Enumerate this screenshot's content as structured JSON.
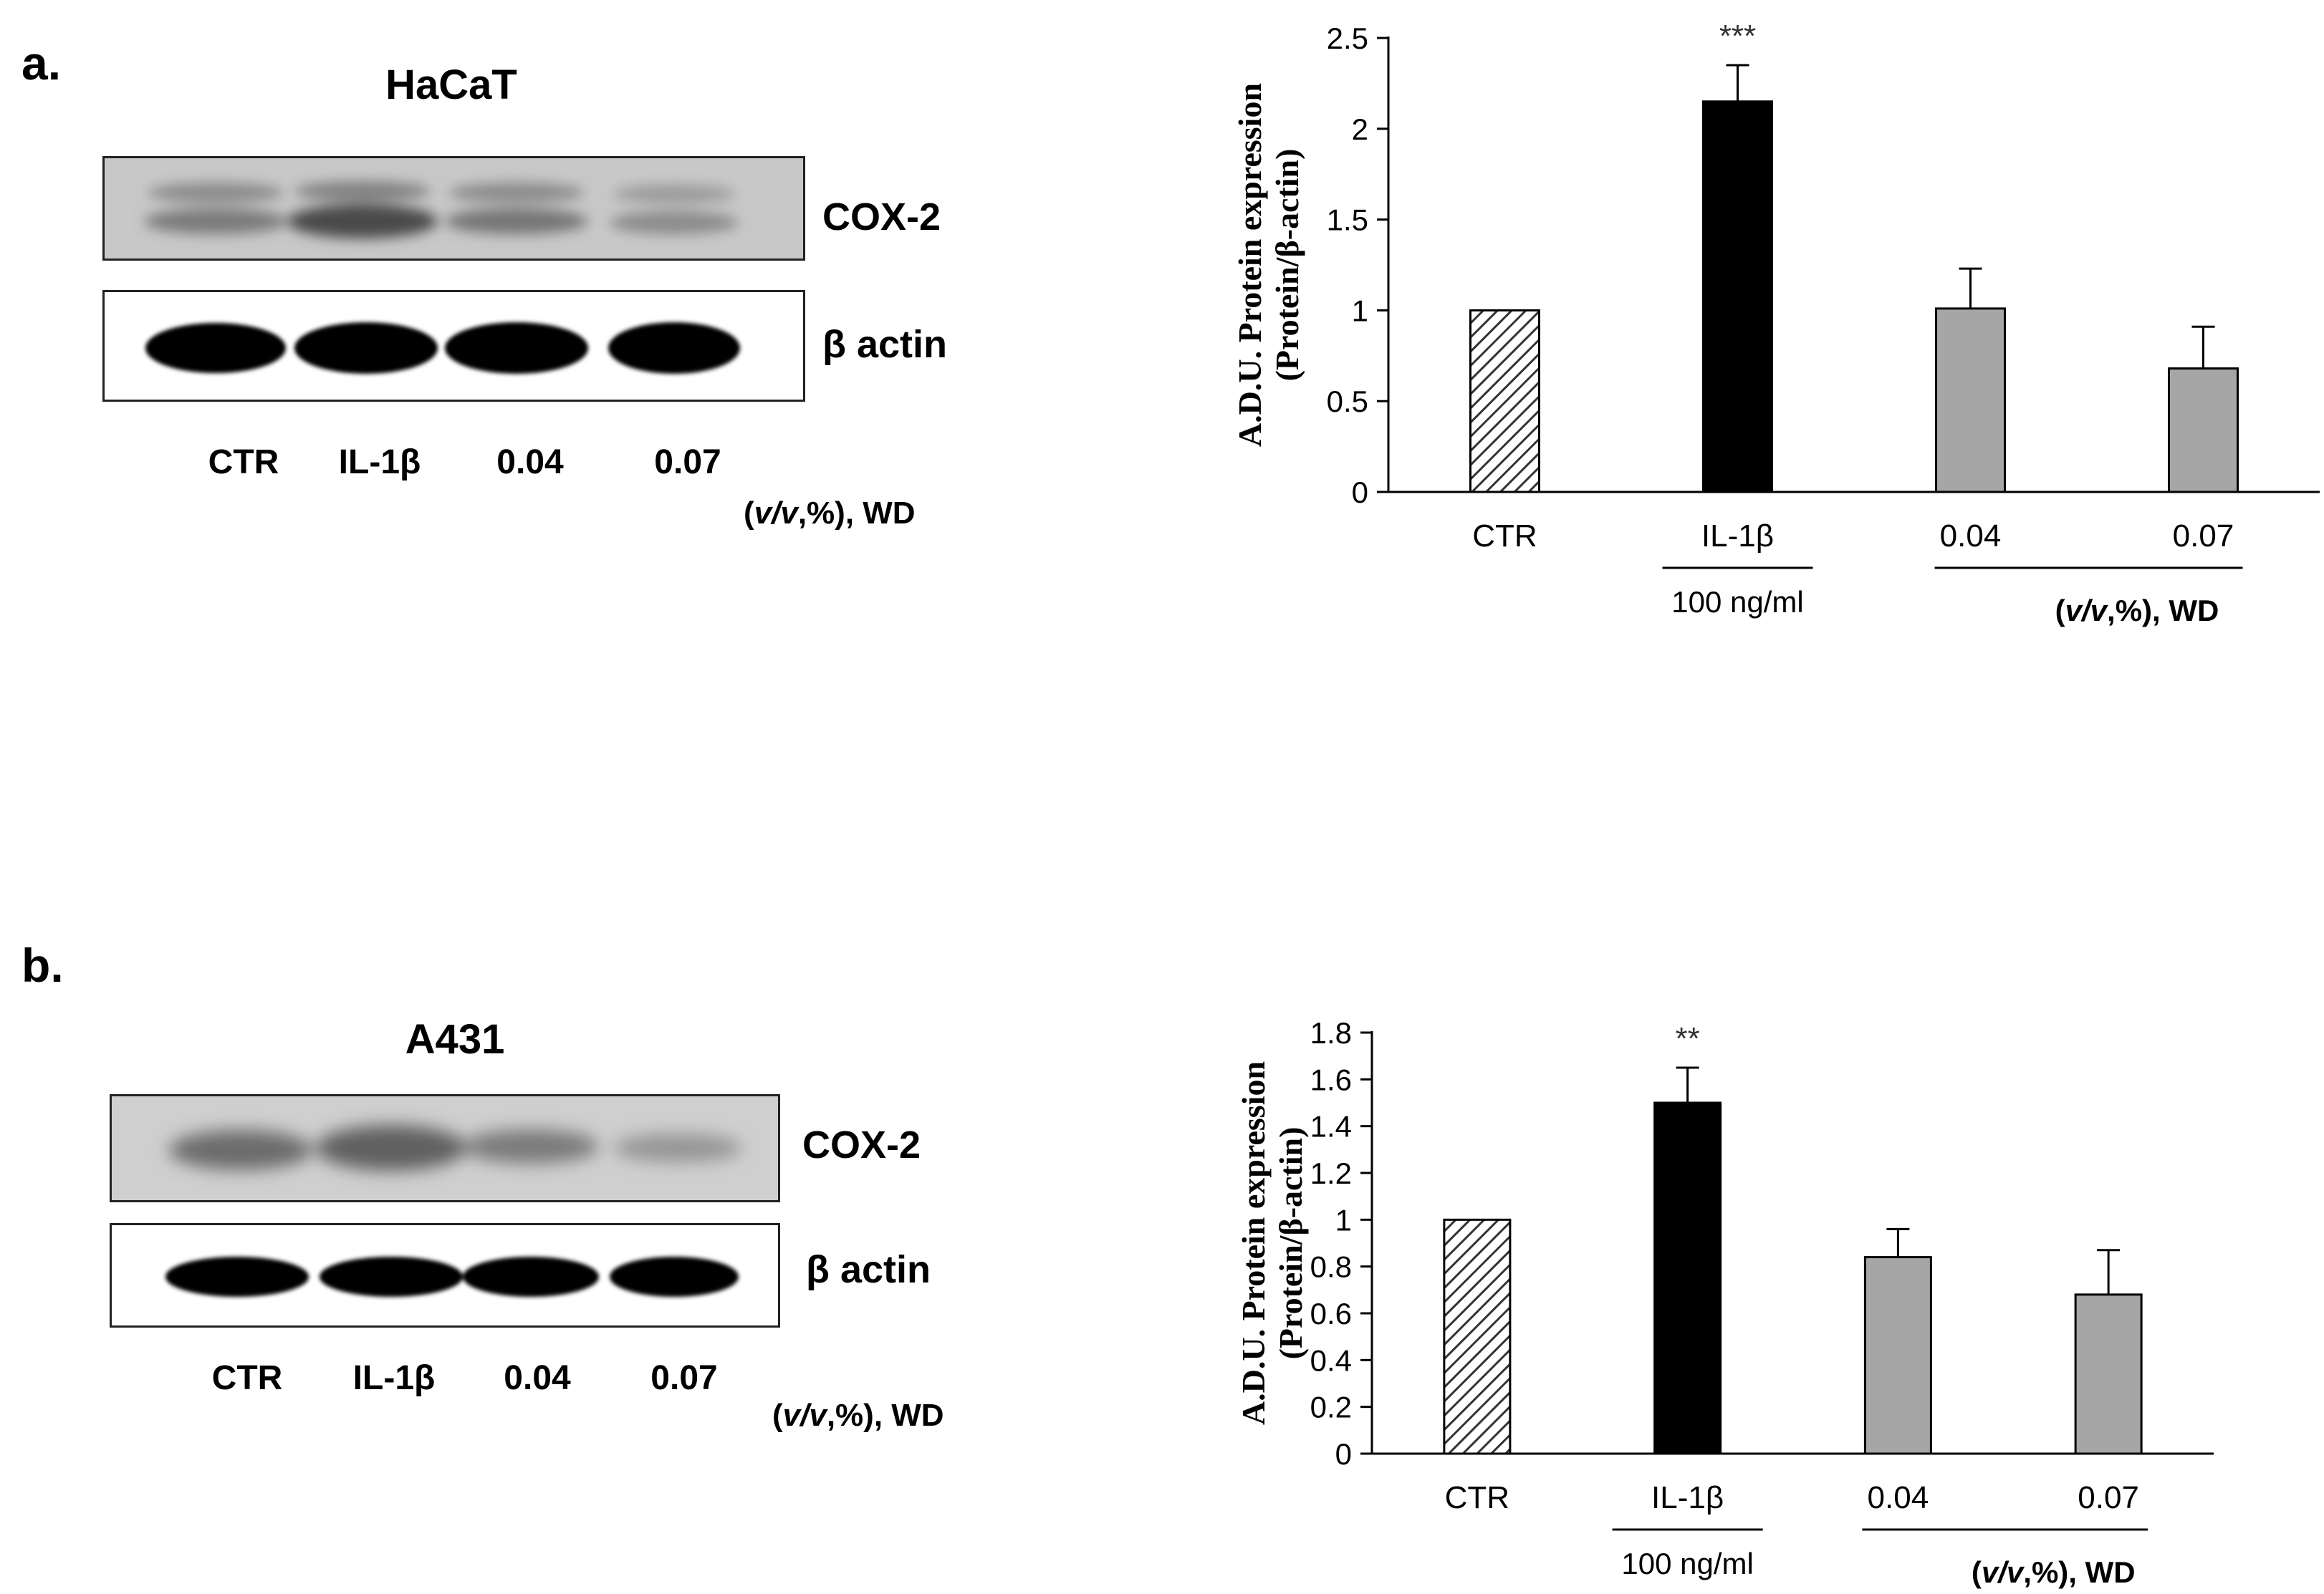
{
  "panels": [
    {
      "letter": "a.",
      "cell_line": "HaCaT",
      "blot": {
        "rows": [
          "COX-2",
          "β actin"
        ],
        "lanes": [
          "CTR",
          "IL-1β",
          "0.04",
          "0.07"
        ],
        "unit_prefix": "(",
        "unit_italic": "v/v",
        "unit_suffix": ",%), WD"
      },
      "chart_data": {
        "type": "bar",
        "categories": [
          "CTR",
          "IL-1β",
          "0.04",
          "0.07"
        ],
        "values": [
          1.0,
          2.15,
          1.01,
          0.68
        ],
        "errors": [
          0,
          0.2,
          0.22,
          0.23
        ],
        "significance": [
          "",
          "***",
          "",
          ""
        ],
        "bar_styles": [
          "hatched",
          "black",
          "gray",
          "gray"
        ],
        "ylabel_line1": "A.D.U. Protein expression",
        "ylabel_line2": "(Protein/β-actin)",
        "ylim": [
          0,
          2.5
        ],
        "yticks": [
          0,
          0.5,
          1,
          1.5,
          2,
          2.5
        ],
        "ytick_labels": [
          "0",
          "0.5",
          "1",
          "1.5",
          "2",
          "2.5"
        ],
        "group_label_il": "100 ng/ml",
        "group_label_wd_prefix": "(",
        "group_label_wd_italic": "v/v",
        "group_label_wd_suffix": ",%), WD",
        "grid": false
      }
    },
    {
      "letter": "b.",
      "cell_line": "A431",
      "blot": {
        "rows": [
          "COX-2",
          "β actin"
        ],
        "lanes": [
          "CTR",
          "IL-1β",
          "0.04",
          "0.07"
        ],
        "unit_prefix": "(",
        "unit_italic": "v/v",
        "unit_suffix": ",%), WD"
      },
      "chart_data": {
        "type": "bar",
        "categories": [
          "CTR",
          "IL-1β",
          "0.04",
          "0.07"
        ],
        "values": [
          1.0,
          1.5,
          0.84,
          0.68
        ],
        "errors": [
          0,
          0.15,
          0.12,
          0.19
        ],
        "significance": [
          "",
          "**",
          "",
          ""
        ],
        "bar_styles": [
          "hatched",
          "black",
          "gray",
          "gray"
        ],
        "ylabel_line1": "A.D.U. Protein expression",
        "ylabel_line2": "(Protein/β-actin)",
        "ylim": [
          0,
          1.8
        ],
        "yticks": [
          0,
          0.2,
          0.4,
          0.6,
          0.8,
          1,
          1.2,
          1.4,
          1.6,
          1.8
        ],
        "ytick_labels": [
          "0",
          "0.2",
          "0.4",
          "0.6",
          "0.8",
          "1",
          "1.2",
          "1.4",
          "1.6",
          "1.8"
        ],
        "group_label_il": "100 ng/ml",
        "group_label_wd_prefix": "(",
        "group_label_wd_italic": "v/v",
        "group_label_wd_suffix": ",%), WD",
        "grid": false
      }
    }
  ],
  "colors": {
    "black_bar": "#000000",
    "gray_bar": "#a6a6a6",
    "hatch": "#333333",
    "axis": "#000000"
  }
}
